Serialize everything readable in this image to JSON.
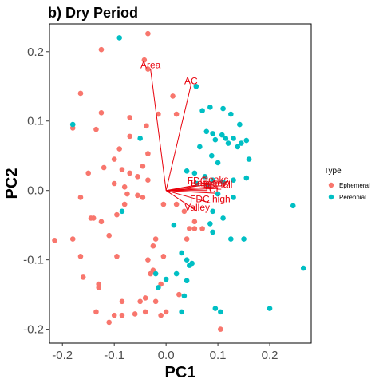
{
  "chart_data": {
    "type": "scatter",
    "title": "b) Dry Period",
    "xlabel": "PC1",
    "ylabel": "PC2",
    "xlim": [
      -0.225,
      0.28
    ],
    "ylim": [
      -0.22,
      0.24
    ],
    "x_ticks": [
      -0.2,
      -0.1,
      0.0,
      0.1,
      0.2
    ],
    "y_ticks": [
      -0.2,
      -0.1,
      0.0,
      0.1,
      0.2
    ],
    "x_tick_labels": [
      "-0.2",
      "-0.1",
      "0.0",
      "0.1",
      "0.2"
    ],
    "y_tick_labels": [
      "-0.2",
      "-0.1",
      "0.0",
      "0.1",
      "0.2"
    ],
    "grid": false,
    "legend": {
      "title": "Type",
      "position": "right",
      "entries": [
        {
          "label": "Ephemeral",
          "color": "#F8766D"
        },
        {
          "label": "Perennial",
          "color": "#00BFC4"
        }
      ]
    },
    "series": [
      {
        "name": "Ephemeral",
        "color": "#F8766D",
        "points": [
          [
            -0.035,
            0.226
          ],
          [
            -0.125,
            0.203
          ],
          [
            -0.042,
            0.188
          ],
          [
            -0.035,
            0.175
          ],
          [
            -0.165,
            0.14
          ],
          [
            -0.125,
            0.112
          ],
          [
            -0.07,
            0.105
          ],
          [
            -0.015,
            0.11
          ],
          [
            0.013,
            0.136
          ],
          [
            0.02,
            0.11
          ],
          [
            -0.18,
            0.09
          ],
          [
            -0.135,
            0.088
          ],
          [
            -0.07,
            0.078
          ],
          [
            -0.038,
            0.093
          ],
          [
            -0.09,
            0.06
          ],
          [
            -0.035,
            0.053
          ],
          [
            -0.1,
            0.045
          ],
          [
            -0.045,
            0.035
          ],
          [
            -0.085,
            0.03
          ],
          [
            -0.15,
            0.025
          ],
          [
            -0.12,
            0.033
          ],
          [
            -0.055,
            0.02
          ],
          [
            -0.07,
            0.025
          ],
          [
            -0.1,
            0.01
          ],
          [
            -0.08,
            0.005
          ],
          [
            -0.035,
            0.015
          ],
          [
            -0.055,
            -0.007
          ],
          [
            -0.075,
            -0.005
          ],
          [
            -0.165,
            -0.01
          ],
          [
            -0.045,
            -0.01
          ],
          [
            -0.08,
            -0.02
          ],
          [
            -0.095,
            -0.035
          ],
          [
            -0.14,
            -0.04
          ],
          [
            -0.125,
            -0.045
          ],
          [
            -0.145,
            -0.04
          ],
          [
            -0.005,
            -0.02
          ],
          [
            0.02,
            -0.02
          ],
          [
            0.035,
            -0.03
          ],
          [
            0.055,
            -0.045
          ],
          [
            0.045,
            -0.055
          ],
          [
            0.055,
            -0.055
          ],
          [
            0.07,
            -0.055
          ],
          [
            0.04,
            -0.07
          ],
          [
            -0.02,
            -0.07
          ],
          [
            -0.11,
            -0.065
          ],
          [
            -0.215,
            -0.072
          ],
          [
            -0.18,
            -0.07
          ],
          [
            -0.025,
            -0.08
          ],
          [
            -0.165,
            -0.095
          ],
          [
            -0.095,
            -0.095
          ],
          [
            -0.035,
            -0.1
          ],
          [
            -0.005,
            -0.095
          ],
          [
            -0.025,
            -0.115
          ],
          [
            -0.03,
            -0.12
          ],
          [
            -0.16,
            -0.125
          ],
          [
            -0.13,
            -0.135
          ],
          [
            -0.01,
            -0.135
          ],
          [
            -0.05,
            -0.16
          ],
          [
            -0.13,
            -0.14
          ],
          [
            0.025,
            -0.15
          ],
          [
            -0.085,
            -0.16
          ],
          [
            -0.02,
            -0.16
          ],
          [
            -0.04,
            -0.155
          ],
          [
            -0.135,
            -0.175
          ],
          [
            -0.01,
            -0.18
          ],
          [
            -0.1,
            -0.18
          ],
          [
            -0.085,
            -0.18
          ],
          [
            -0.06,
            -0.178
          ],
          [
            0.0,
            -0.175
          ],
          [
            -0.04,
            -0.175
          ],
          [
            0.105,
            -0.2
          ],
          [
            -0.11,
            -0.19
          ]
        ]
      },
      {
        "name": "Perennial",
        "color": "#00BFC4",
        "points": [
          [
            -0.09,
            0.22
          ],
          [
            0.058,
            0.15
          ],
          [
            0.085,
            0.12
          ],
          [
            0.07,
            0.115
          ],
          [
            0.11,
            0.118
          ],
          [
            0.125,
            0.11
          ],
          [
            0.142,
            0.095
          ],
          [
            -0.18,
            0.095
          ],
          [
            0.078,
            0.085
          ],
          [
            0.09,
            0.082
          ],
          [
            0.108,
            0.08
          ],
          [
            0.095,
            0.073
          ],
          [
            0.115,
            0.075
          ],
          [
            0.13,
            0.075
          ],
          [
            0.155,
            0.072
          ],
          [
            0.145,
            0.068
          ],
          [
            0.12,
            0.068
          ],
          [
            0.138,
            0.063
          ],
          [
            0.065,
            0.063
          ],
          [
            0.088,
            0.05
          ],
          [
            0.16,
            0.045
          ],
          [
            -0.05,
            0.075
          ],
          [
            0.1,
            0.04
          ],
          [
            0.04,
            0.028
          ],
          [
            0.055,
            0.025
          ],
          [
            0.075,
            0.02
          ],
          [
            0.09,
            0.015
          ],
          [
            0.11,
            0.012
          ],
          [
            0.13,
            0.015
          ],
          [
            0.155,
            0.018
          ],
          [
            0.06,
            0.01
          ],
          [
            0.08,
            0.008
          ],
          [
            0.1,
            -0.005
          ],
          [
            0.13,
            -0.01
          ],
          [
            0.09,
            -0.03
          ],
          [
            0.11,
            -0.04
          ],
          [
            0.085,
            -0.048
          ],
          [
            -0.085,
            -0.03
          ],
          [
            0.245,
            -0.022
          ],
          [
            0.09,
            -0.06
          ],
          [
            0.015,
            -0.05
          ],
          [
            0.125,
            -0.07
          ],
          [
            0.15,
            -0.07
          ],
          [
            0.03,
            -0.09
          ],
          [
            0.04,
            -0.1
          ],
          [
            0.05,
            -0.105
          ],
          [
            0.02,
            -0.12
          ],
          [
            0.045,
            -0.108
          ],
          [
            -0.02,
            -0.12
          ],
          [
            0.0,
            -0.128
          ],
          [
            -0.015,
            -0.14
          ],
          [
            0.265,
            -0.112
          ],
          [
            0.04,
            -0.13
          ],
          [
            0.035,
            -0.152
          ],
          [
            0.03,
            -0.175
          ],
          [
            0.095,
            -0.17
          ],
          [
            0.2,
            -0.17
          ],
          [
            0.105,
            -0.175
          ]
        ]
      }
    ],
    "loadings": [
      {
        "label": "Area",
        "x": -0.03,
        "y": 0.175
      },
      {
        "label": "AC",
        "x": 0.048,
        "y": 0.152
      },
      {
        "label": "Peaks",
        "x": 0.095,
        "y": 0.01
      },
      {
        "label": "FDC",
        "x": 0.06,
        "y": 0.008
      },
      {
        "label": "Baseflow",
        "x": 0.085,
        "y": 0.005
      },
      {
        "label": "Dsmall",
        "x": 0.1,
        "y": 0.003
      },
      {
        "label": "TI",
        "x": 0.08,
        "y": 0.0
      },
      {
        "label": "CF",
        "x": 0.095,
        "y": -0.004
      },
      {
        "label": "FDC high",
        "x": 0.085,
        "y": -0.018
      },
      {
        "label": "Valley",
        "x": 0.06,
        "y": -0.03
      }
    ]
  }
}
